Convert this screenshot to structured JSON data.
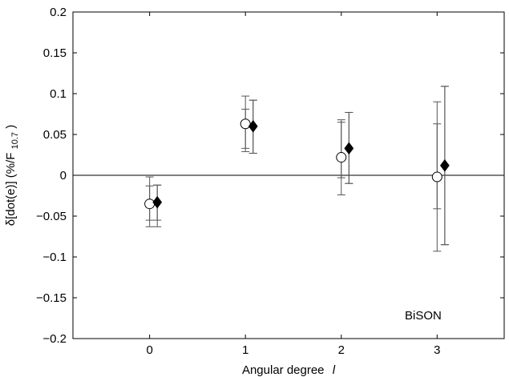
{
  "chart_data": {
    "type": "scatter",
    "xlabel": "Angular degree",
    "xlabel_italic": "l",
    "ylabel": "δ[dot(e)] (%/F",
    "ylabel_sub": "10.7",
    "ylabel_end": ")",
    "annotation": "BiSON",
    "xlim": [
      -0.8,
      3.7
    ],
    "ylim": [
      -0.2,
      0.2
    ],
    "xticks": [
      0,
      1,
      2,
      3
    ],
    "xtick_labels": [
      "0",
      "1",
      "2",
      "3"
    ],
    "yticks": [
      -0.2,
      -0.15,
      -0.1,
      -0.05,
      0,
      0.05,
      0.1,
      0.15,
      0.2
    ],
    "ytick_labels": [
      "−0.2",
      "−0.15",
      "−0.1",
      "−0.05",
      "0",
      "0.05",
      "0.1",
      "0.15",
      "0.2"
    ],
    "zero_line": true,
    "grid": false,
    "series": [
      {
        "marker": "open-circle",
        "points": [
          {
            "x": 0.0,
            "y": -0.035,
            "err_inner": [
              -0.055,
              -0.013
            ],
            "err_outer": [
              -0.063,
              -0.002
            ]
          },
          {
            "x": 1.0,
            "y": 0.063,
            "err_inner": [
              0.033,
              0.081
            ],
            "err_outer": [
              0.029,
              0.097
            ]
          },
          {
            "x": 2.0,
            "y": 0.022,
            "err_inner": [
              -0.003,
              0.065
            ],
            "err_outer": [
              -0.024,
              0.068
            ]
          },
          {
            "x": 3.0,
            "y": -0.002,
            "err_inner": [
              -0.041,
              0.063
            ],
            "err_outer": [
              -0.093,
              0.09
            ]
          }
        ]
      },
      {
        "marker": "filled-diamond",
        "points": [
          {
            "x": 0.08,
            "y": -0.033,
            "err_inner": [
              -0.055,
              -0.012
            ],
            "err_outer": [
              -0.063,
              -0.012
            ]
          },
          {
            "x": 1.08,
            "y": 0.06,
            "err_inner": [
              0.027,
              0.092
            ],
            "err_outer": [
              0.027,
              0.092
            ]
          },
          {
            "x": 2.08,
            "y": 0.033,
            "err_inner": [
              -0.01,
              0.077
            ],
            "err_outer": [
              -0.01,
              0.077
            ]
          },
          {
            "x": 3.08,
            "y": 0.012,
            "err_inner": [
              -0.085,
              0.109
            ],
            "err_outer": [
              -0.085,
              0.109
            ]
          }
        ]
      }
    ]
  }
}
